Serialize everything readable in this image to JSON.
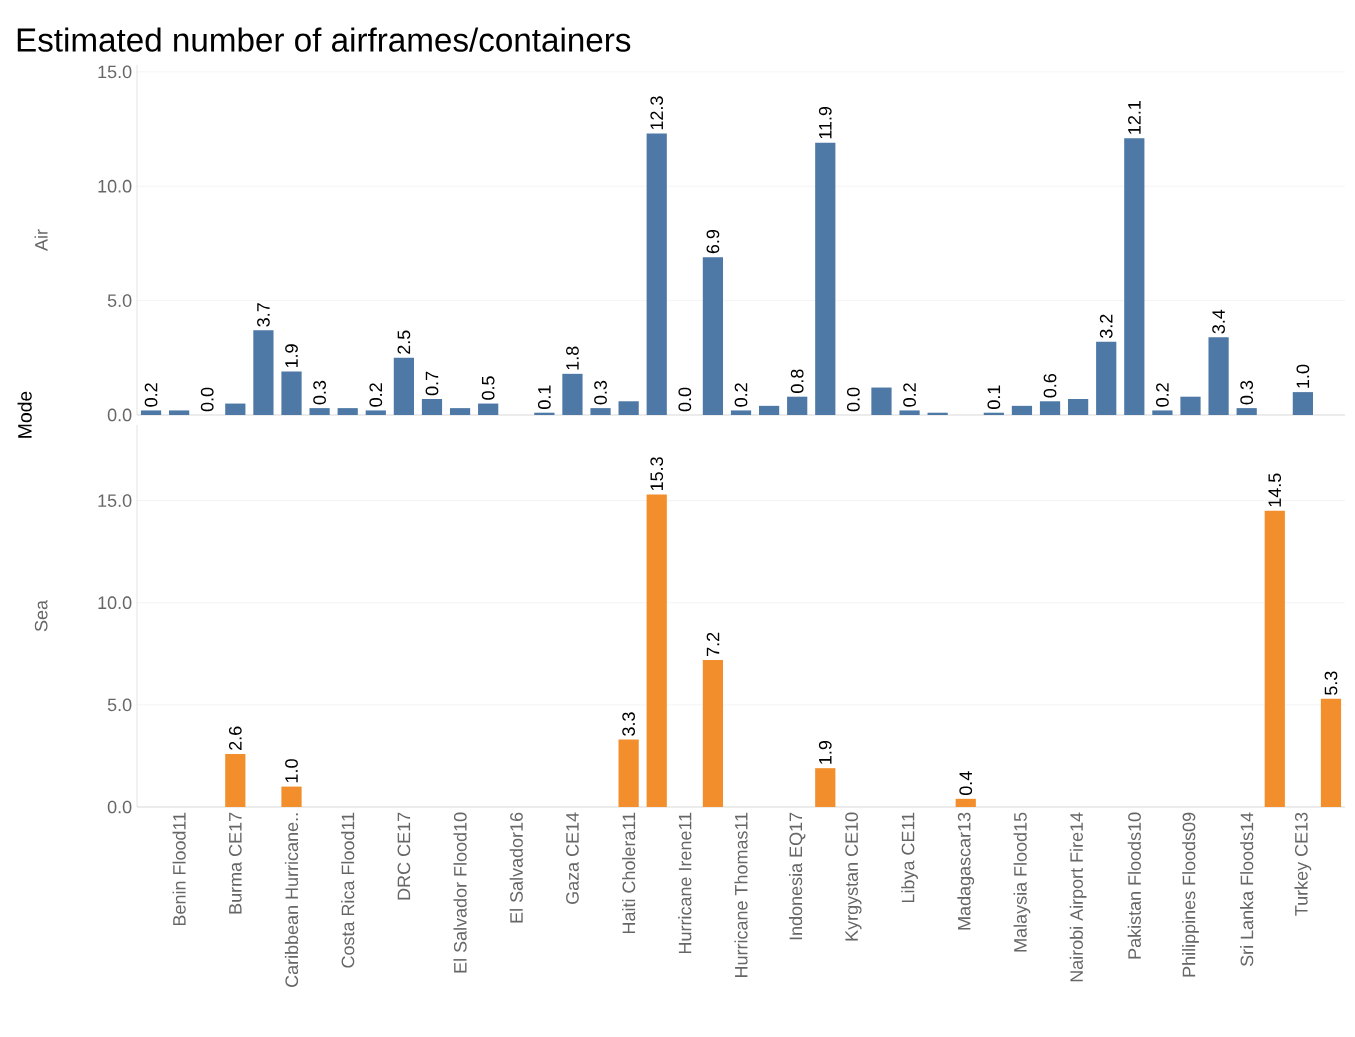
{
  "chart_data": [
    {
      "type": "bar",
      "title": "Estimated number of airframes/containers",
      "ylabel": "Air",
      "annotations": [
        "Mode"
      ],
      "categories": [
        null,
        null,
        null,
        null,
        null,
        null,
        null,
        null,
        null,
        null,
        null,
        null,
        null,
        null,
        null,
        null,
        null,
        null,
        null,
        null,
        null,
        null,
        null,
        null,
        null,
        null,
        null,
        null,
        null,
        null,
        null,
        null,
        null,
        null,
        null,
        null,
        null,
        null,
        null,
        null,
        null,
        null,
        null
      ],
      "values": [
        0.2,
        0.2,
        0.0,
        0.5,
        3.7,
        1.9,
        0.3,
        0.3,
        0.2,
        2.5,
        0.7,
        0.3,
        0.5,
        0.0,
        0.1,
        1.8,
        0.3,
        0.6,
        12.3,
        0.0,
        6.9,
        0.2,
        0.4,
        0.8,
        11.9,
        0.0,
        1.2,
        0.2,
        0.1,
        null,
        0.1,
        0.4,
        0.6,
        0.7,
        3.2,
        12.1,
        0.2,
        0.8,
        3.4,
        0.3,
        null,
        1.0,
        null
      ],
      "value_labels": [
        "0.2",
        null,
        "0.0",
        null,
        "3.7",
        "1.9",
        "0.3",
        null,
        "0.2",
        "2.5",
        "0.7",
        null,
        "0.5",
        null,
        "0.1",
        "1.8",
        "0.3",
        null,
        "12.3",
        "0.0",
        "6.9",
        "0.2",
        null,
        "0.8",
        "11.9",
        "0.0",
        null,
        "0.2",
        null,
        null,
        "0.1",
        null,
        "0.6",
        null,
        "3.2",
        "12.1",
        "0.2",
        null,
        "3.4",
        "0.3",
        null,
        "1.0",
        null
      ],
      "color": "#4e79a7",
      "ylim": [
        0,
        15.3
      ],
      "yticks": [
        {
          "value": 0,
          "label": "0.0"
        },
        {
          "value": 5,
          "label": "5.0"
        },
        {
          "value": 10,
          "label": "10.0"
        },
        {
          "value": 15,
          "label": "15.0"
        }
      ],
      "grid": "y",
      "tick_labels": "y"
    },
    {
      "type": "bar",
      "ylabel": "Sea",
      "categories": [
        null,
        "Benin Flood11",
        null,
        "Burma CE17",
        null,
        "Caribbean Hurricane..",
        null,
        "Costa Rica Flood11",
        null,
        "DRC CE17",
        null,
        "El Salvador Flood10",
        null,
        "El Salvador16",
        null,
        "Gaza CE14",
        null,
        "Haiti Cholera11",
        null,
        "Hurricane Irene11",
        null,
        "Hurricane Thomas11",
        null,
        "Indonesia EQ17",
        null,
        "Kyrgystan CE10",
        null,
        "Libya CE11",
        null,
        "Madagascar13",
        null,
        "Malaysia Flood15",
        null,
        "Nairobi Airport Fire14",
        null,
        "Pakistan Floods10",
        null,
        "Philippines Floods09",
        null,
        "Sri Lanka Floods14",
        null,
        "Turkey CE13",
        null
      ],
      "values": [
        null,
        null,
        null,
        2.6,
        null,
        1.0,
        null,
        null,
        null,
        null,
        null,
        null,
        null,
        null,
        null,
        null,
        null,
        3.3,
        15.3,
        null,
        7.2,
        null,
        null,
        null,
        1.9,
        null,
        null,
        null,
        null,
        0.4,
        null,
        null,
        null,
        null,
        null,
        null,
        null,
        null,
        null,
        null,
        14.5,
        null,
        5.3
      ],
      "value_labels": [
        null,
        null,
        null,
        "2.6",
        null,
        "1.0",
        null,
        null,
        null,
        null,
        null,
        null,
        null,
        null,
        null,
        null,
        null,
        "3.3",
        "15.3",
        null,
        "7.2",
        null,
        null,
        null,
        "1.9",
        null,
        null,
        null,
        null,
        "0.4",
        null,
        null,
        null,
        null,
        null,
        null,
        null,
        null,
        null,
        null,
        "14.5",
        null,
        "5.3"
      ],
      "color": "#f28e2b",
      "ylim": [
        0,
        18.7
      ],
      "yticks": [
        {
          "value": 0,
          "label": "0.0"
        },
        {
          "value": 5,
          "label": "5.0"
        },
        {
          "value": 10,
          "label": "10.0"
        },
        {
          "value": 15,
          "label": "15.0"
        }
      ],
      "grid": "y"
    }
  ]
}
